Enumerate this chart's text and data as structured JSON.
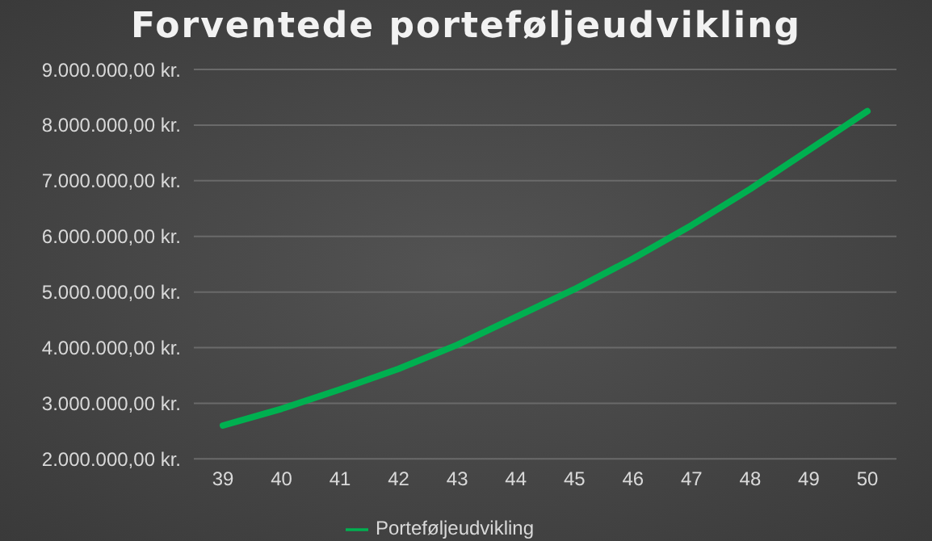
{
  "chart_data": {
    "type": "line",
    "title": "Forventede porteføljeudvikling",
    "categories": [
      "39",
      "40",
      "41",
      "42",
      "43",
      "44",
      "45",
      "46",
      "47",
      "48",
      "49",
      "50"
    ],
    "series": [
      {
        "name": "Porteføljeudvikling",
        "color": "#00b050",
        "values": [
          2600000,
          2900000,
          3250000,
          3620000,
          4050000,
          4550000,
          5050000,
          5600000,
          6200000,
          6850000,
          7550000,
          8250000
        ]
      }
    ],
    "ylim": [
      2000000,
      9000000
    ],
    "yticks": [
      {
        "value": 2000000,
        "label": "2.000.000,00 kr."
      },
      {
        "value": 3000000,
        "label": "3.000.000,00 kr."
      },
      {
        "value": 4000000,
        "label": "4.000.000,00 kr."
      },
      {
        "value": 5000000,
        "label": "5.000.000,00 kr."
      },
      {
        "value": 6000000,
        "label": "6.000.000,00 kr."
      },
      {
        "value": 7000000,
        "label": "7.000.000,00 kr."
      },
      {
        "value": 8000000,
        "label": "8.000.000,00 kr."
      },
      {
        "value": 9000000,
        "label": "9.000.000,00 kr."
      }
    ],
    "grid": "y",
    "legend": "bottom",
    "marker": "none",
    "line_style": "solid"
  }
}
